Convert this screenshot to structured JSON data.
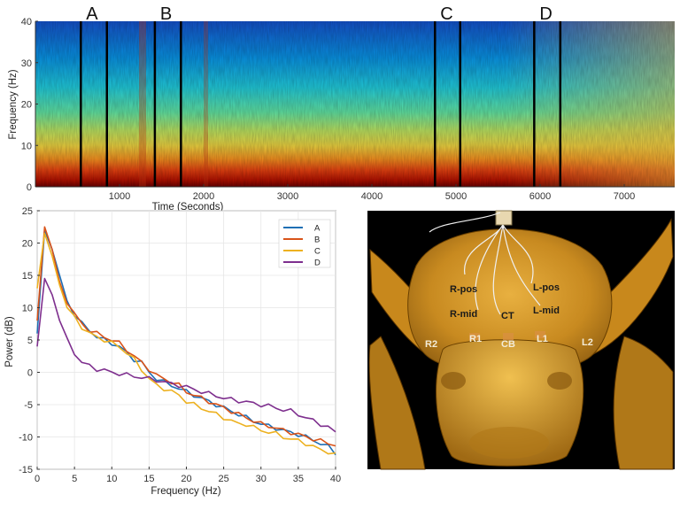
{
  "chart_data": [
    {
      "type": "heatmap",
      "title": "",
      "xlabel": "Time (Seconds)",
      "ylabel": "Frequency (Hz)",
      "xlim": [
        0,
        7600
      ],
      "ylim": [
        0,
        40
      ],
      "xticks": [
        "1000",
        "2000",
        "3000",
        "4000",
        "5000",
        "6000",
        "7000"
      ],
      "yticks": [
        "0",
        "10",
        "20",
        "30",
        "40"
      ],
      "colormap": [
        "#00007f",
        "#0050d0",
        "#00b4e6",
        "#54e0a8",
        "#bde060",
        "#f0d040",
        "#f08020",
        "#c82010",
        "#7a0000"
      ],
      "segments": [
        {
          "label": "A",
          "start": 540,
          "end": 850
        },
        {
          "label": "B",
          "start": 1420,
          "end": 1730
        },
        {
          "label": "C",
          "start": 4750,
          "end": 5050
        },
        {
          "label": "D",
          "start": 5930,
          "end": 6240
        }
      ]
    },
    {
      "type": "line",
      "title": "",
      "xlabel": "Frequency (Hz)",
      "ylabel": "Power (dB)",
      "xlim": [
        0,
        40
      ],
      "ylim": [
        -15,
        25
      ],
      "xticks": [
        "0",
        "5",
        "10",
        "15",
        "20",
        "25",
        "30",
        "35",
        "40"
      ],
      "yticks": [
        "25",
        "20",
        "15",
        "10",
        "5",
        "0",
        "-5",
        "-10",
        "-15"
      ],
      "legend": "top-right",
      "x": [
        0,
        1,
        2,
        3,
        4,
        5,
        6,
        7,
        8,
        9,
        10,
        11,
        12,
        13,
        14,
        15,
        16,
        17,
        18,
        19,
        20,
        21,
        22,
        23,
        24,
        25,
        26,
        27,
        28,
        29,
        30,
        31,
        32,
        33,
        34,
        35,
        36,
        37,
        38,
        39,
        40
      ],
      "series": [
        {
          "name": "A",
          "color": "#1f6fb5",
          "values": [
            6,
            22,
            19,
            15,
            11,
            9,
            7.5,
            6.5,
            5.5,
            5,
            4.5,
            4,
            3,
            2,
            1.5,
            0,
            -1,
            -1.5,
            -2,
            -2.5,
            -3,
            -3.5,
            -4,
            -4.5,
            -5,
            -5.5,
            -6,
            -6.5,
            -7,
            -7.5,
            -8,
            -8.3,
            -8.6,
            -9,
            -9.3,
            -9.6,
            -10,
            -10.5,
            -11,
            -11.5,
            -12.5
          ]
        },
        {
          "name": "B",
          "color": "#d95319",
          "values": [
            8,
            22.5,
            19,
            14,
            11,
            9,
            7.5,
            6.5,
            6,
            5.5,
            5,
            4.5,
            3.5,
            2.5,
            1.5,
            0.5,
            -0.5,
            -1,
            -1.5,
            -2,
            -3,
            -3.5,
            -4,
            -4.5,
            -5,
            -5.5,
            -6,
            -6.5,
            -7,
            -7.5,
            -8,
            -8.3,
            -8.6,
            -9,
            -9.3,
            -9.6,
            -10,
            -10.3,
            -10.6,
            -11,
            -11.2
          ]
        },
        {
          "name": "C",
          "color": "#edb120",
          "values": [
            13,
            21.5,
            18,
            13.5,
            10,
            8.5,
            7,
            6,
            5.5,
            5,
            4.5,
            4,
            3,
            2,
            0.5,
            -1,
            -2,
            -2.5,
            -3,
            -3.5,
            -4.5,
            -5,
            -5.5,
            -6,
            -6.5,
            -7,
            -7.5,
            -8,
            -8,
            -8.5,
            -9,
            -9.2,
            -9.5,
            -10,
            -10.3,
            -10.6,
            -11,
            -11.5,
            -12,
            -12.3,
            -12.8
          ]
        },
        {
          "name": "D",
          "color": "#7e2f8e",
          "values": [
            4,
            14.5,
            12,
            8,
            5,
            3,
            1.5,
            1,
            0.5,
            0.3,
            0,
            -0.2,
            -0.4,
            -0.6,
            -0.8,
            -1,
            -1.2,
            -1.5,
            -1.8,
            -2,
            -2.3,
            -2.6,
            -3,
            -3.3,
            -3.6,
            -4,
            -4.2,
            -4.4,
            -4.6,
            -4.8,
            -5,
            -5.2,
            -5.5,
            -5.8,
            -6,
            -6.5,
            -7,
            -7.5,
            -8,
            -8.5,
            -9.3
          ]
        }
      ]
    }
  ],
  "image_panel": {
    "alt": "3D rendering of pig head with surgical electrode placements",
    "electrode_labels": [
      "R-pos",
      "L-pos",
      "R-mid",
      "CT",
      "L-mid",
      "R2",
      "R1",
      "CB",
      "L1",
      "L2"
    ]
  }
}
